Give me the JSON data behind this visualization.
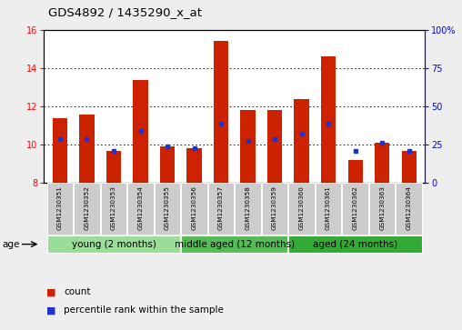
{
  "title": "GDS4892 / 1435290_x_at",
  "samples": [
    "GSM1230351",
    "GSM1230352",
    "GSM1230353",
    "GSM1230354",
    "GSM1230355",
    "GSM1230356",
    "GSM1230357",
    "GSM1230358",
    "GSM1230359",
    "GSM1230360",
    "GSM1230361",
    "GSM1230362",
    "GSM1230363",
    "GSM1230364"
  ],
  "bar_heights": [
    11.4,
    11.6,
    9.7,
    13.4,
    9.9,
    9.8,
    15.4,
    11.8,
    11.8,
    12.4,
    14.6,
    9.2,
    10.1,
    9.7
  ],
  "percentile_values": [
    10.3,
    10.3,
    9.7,
    10.7,
    9.9,
    9.8,
    11.1,
    10.2,
    10.3,
    10.6,
    11.1,
    9.7,
    10.1,
    9.7
  ],
  "bar_color": "#cc2200",
  "percentile_color": "#2233cc",
  "ylim_left": [
    8,
    16
  ],
  "ylim_right": [
    0,
    100
  ],
  "yticks_left": [
    8,
    10,
    12,
    14,
    16
  ],
  "yticks_right": [
    0,
    25,
    50,
    75,
    100
  ],
  "ytick_right_labels": [
    "0",
    "25",
    "50",
    "75",
    "100%"
  ],
  "grid_yticks": [
    10,
    12,
    14
  ],
  "groups": [
    {
      "label": "young (2 months)",
      "indices": [
        0,
        4
      ],
      "color": "#99dd99"
    },
    {
      "label": "middle aged (12 months)",
      "indices": [
        5,
        8
      ],
      "color": "#55bb55"
    },
    {
      "label": "aged (24 months)",
      "indices": [
        9,
        13
      ],
      "color": "#33aa33"
    }
  ],
  "label_count": "count",
  "label_percentile": "percentile rank within the sample",
  "age_label": "age",
  "background_color": "#eeeeee",
  "plot_bg_color": "#ffffff",
  "sample_box_color": "#cccccc",
  "bar_width": 0.55,
  "title_fontsize": 9.5,
  "tick_fontsize": 7,
  "legend_fontsize": 7.5,
  "group_label_fontsize": 7.5,
  "age_fontsize": 7.5,
  "sample_fontsize": 5.2
}
